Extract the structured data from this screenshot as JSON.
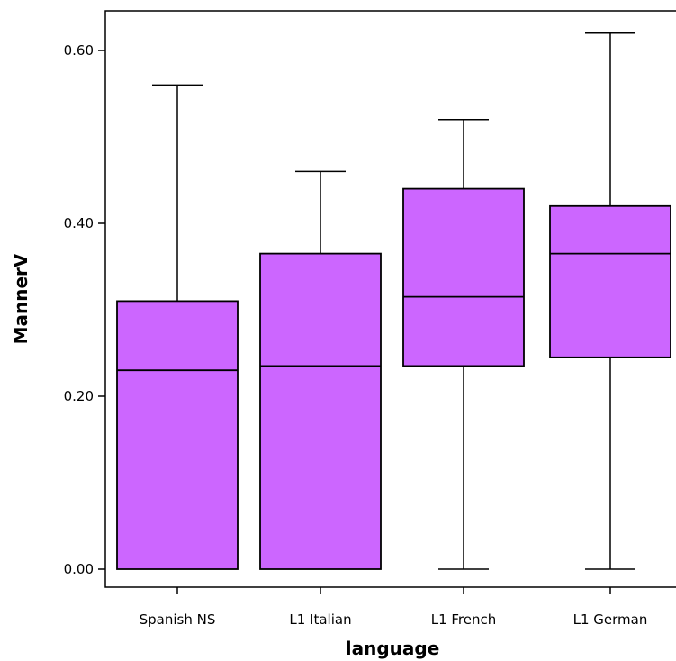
{
  "chart_data": {
    "type": "boxplot",
    "xlabel": "language",
    "ylabel": "MannerV",
    "ylim": [
      -0.025,
      0.645
    ],
    "yticks": [
      0.0,
      0.2,
      0.4,
      0.6
    ],
    "ytick_labels": [
      "0.00",
      "0.20",
      "0.40",
      "0.60"
    ],
    "grid": false,
    "categories": [
      "Spanish NS",
      "L1 Italian",
      "L1 French",
      "L1 German"
    ],
    "boxes": [
      {
        "min": 0.0,
        "q1": 0.0,
        "median": 0.23,
        "q3": 0.31,
        "max": 0.56
      },
      {
        "min": 0.0,
        "q1": 0.0,
        "median": 0.235,
        "q3": 0.365,
        "max": 0.46
      },
      {
        "min": 0.0,
        "q1": 0.235,
        "median": 0.315,
        "q3": 0.44,
        "max": 0.52
      },
      {
        "min": 0.0,
        "q1": 0.245,
        "median": 0.365,
        "q3": 0.42,
        "max": 0.62
      }
    ],
    "colors": {
      "box_fill": "#cc66ff",
      "stroke": "#000000"
    }
  }
}
